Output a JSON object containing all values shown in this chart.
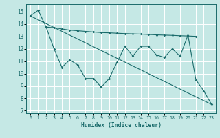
{
  "xlabel": "Humidex (Indice chaleur)",
  "bg_color": "#c5e8e5",
  "grid_color": "#ffffff",
  "line_color": "#1a6b6b",
  "xlim": [
    -0.5,
    23.5
  ],
  "ylim": [
    6.8,
    15.6
  ],
  "yticks": [
    7,
    8,
    9,
    10,
    11,
    12,
    13,
    14,
    15
  ],
  "xticks": [
    0,
    1,
    2,
    3,
    4,
    5,
    6,
    7,
    8,
    9,
    10,
    11,
    12,
    13,
    14,
    15,
    16,
    17,
    18,
    19,
    20,
    21,
    22,
    23
  ],
  "line1_x": [
    0,
    1,
    2,
    3,
    4,
    5,
    6,
    7,
    8,
    9,
    10,
    11,
    12,
    13,
    14,
    15,
    16,
    17,
    18,
    19,
    20,
    21
  ],
  "line1_y": [
    14.65,
    15.1,
    13.75,
    13.7,
    13.6,
    13.5,
    13.45,
    13.4,
    13.35,
    13.3,
    13.28,
    13.25,
    13.22,
    13.2,
    13.18,
    13.15,
    13.12,
    13.1,
    13.08,
    13.05,
    13.03,
    13.0
  ],
  "line2_x": [
    2,
    3,
    4,
    5,
    6,
    7,
    8,
    9,
    10,
    11,
    12,
    13,
    14,
    15,
    16,
    17,
    18,
    19,
    20,
    21,
    22,
    23
  ],
  "line2_y": [
    13.75,
    12.0,
    10.5,
    11.1,
    10.7,
    9.6,
    9.6,
    8.9,
    9.6,
    10.9,
    12.2,
    11.4,
    12.2,
    12.2,
    11.5,
    11.3,
    12.0,
    11.4,
    13.1,
    9.5,
    8.6,
    7.5
  ],
  "line3_x": [
    0,
    23
  ],
  "line3_y": [
    14.65,
    7.5
  ]
}
